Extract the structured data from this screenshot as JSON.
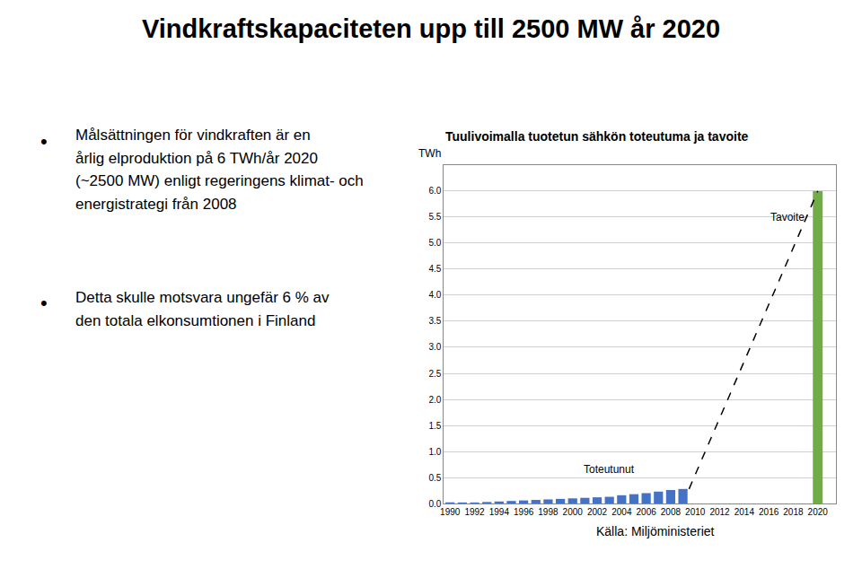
{
  "chart_data": {
    "type": "bar",
    "title": "Vindkraftskapaciteten upp till 2500 MW år 2020",
    "subtitle": "Tuulivoimalla tuotetun sähkön toteutuma ja tavoite",
    "ylabel": "TWh",
    "series": [
      {
        "type": "bar",
        "color": "#4472C4",
        "x": [
          1990,
          1991,
          1992,
          1993,
          1994,
          1995,
          1996,
          1997,
          1998,
          1999,
          2000,
          2001,
          2002,
          2003,
          2004,
          2005,
          2006,
          2007,
          2008,
          2009
        ],
        "values": [
          0.02,
          0.02,
          0.02,
          0.03,
          0.04,
          0.05,
          0.06,
          0.07,
          0.08,
          0.09,
          0.1,
          0.11,
          0.12,
          0.13,
          0.16,
          0.18,
          0.2,
          0.23,
          0.26,
          0.28
        ]
      },
      {
        "type": "bar",
        "color": "#70AD47",
        "x": [
          2020
        ],
        "values": [
          6.0
        ]
      },
      {
        "type": "line",
        "color": "#000000",
        "line_style": "dashed",
        "x": [
          2009.5,
          2020
        ],
        "values": [
          0.28,
          6.0
        ]
      }
    ],
    "annotations": [
      {
        "text": "Toteutunut",
        "x": 2003,
        "y": 0.5
      },
      {
        "text": "Tavoite",
        "x": 2017.5,
        "y": 5.35
      },
      {
        "text": "•"
      },
      {
        "text": "Målsättningen för vindkraften är en"
      },
      {
        "text": "årlig elproduktion på 6 TWh/år 2020"
      },
      {
        "text": "(~2500 MW) enligt regeringens klimat- och"
      },
      {
        "text": "energistrategi från 2008"
      },
      {
        "text": "•"
      },
      {
        "text": "Detta skulle motsvara ungefär 6 % av"
      },
      {
        "text": "den totala elkonsumtionen i Finland"
      },
      {
        "text": "Källa: Miljöministeriet"
      }
    ],
    "xlim": [
      1989.5,
      2021.5
    ],
    "xticks": [
      1990,
      1992,
      1994,
      1996,
      1998,
      2000,
      2002,
      2004,
      2006,
      2008,
      2010,
      2012,
      2014,
      2016,
      2018,
      2020
    ],
    "ylim": [
      0,
      6.5
    ],
    "yticks": [
      {
        "value": 0,
        "label": "0.0"
      },
      0.5,
      {
        "value": 1,
        "label": "1.0"
      },
      1.5,
      {
        "value": 2,
        "label": "2.0"
      },
      2.5,
      {
        "value": 3,
        "label": "3.0"
      },
      3.5,
      {
        "value": 4,
        "label": "4.0"
      },
      4.5,
      {
        "value": 5,
        "label": "5.0"
      },
      5.5,
      {
        "value": 6,
        "label": "6.0"
      }
    ],
    "grid": true
  }
}
